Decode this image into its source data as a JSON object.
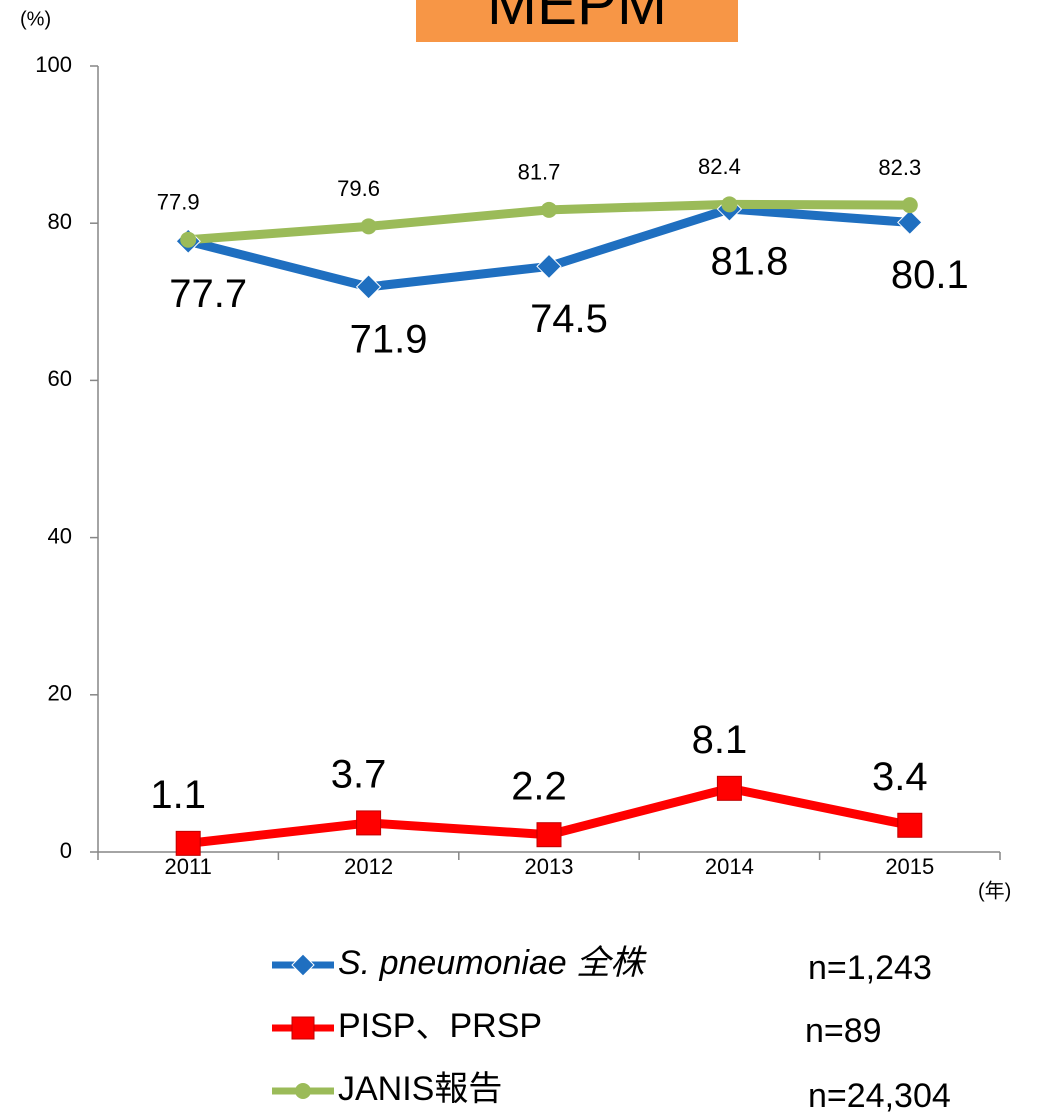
{
  "chart_data": {
    "type": "line",
    "title": "MEPM",
    "y_unit": "(%)",
    "x_unit": "(年)",
    "categories": [
      "2011",
      "2012",
      "2013",
      "2014",
      "2015"
    ],
    "ylim": [
      0,
      100
    ],
    "yticks": [
      0,
      20,
      40,
      60,
      80,
      100
    ],
    "series": [
      {
        "name": "S. pneumoniae 全株",
        "color": "#1f6fc0",
        "marker": "diamond",
        "n": "n=1,243",
        "values": [
          77.7,
          71.9,
          74.5,
          81.8,
          80.1
        ],
        "label_colors": [
          "#000000",
          "#000000",
          "#000000",
          "#000000",
          "#ff3300"
        ]
      },
      {
        "name": "PISP、PRSP",
        "color": "#ff0000",
        "marker": "square",
        "n": "n=89",
        "values": [
          1.1,
          3.7,
          2.2,
          8.1,
          3.4
        ],
        "label_colors": [
          "#000000",
          "#000000",
          "#000000",
          "#000000",
          "#ff3300"
        ]
      },
      {
        "name": "JANIS報告",
        "color": "#9bbb59",
        "marker": "circle",
        "n": "n=24,304",
        "values": [
          77.9,
          79.6,
          81.7,
          82.4,
          82.3
        ],
        "label_colors": [
          "#000000",
          "#000000",
          "#000000",
          "#000000",
          "#000000"
        ]
      }
    ]
  }
}
